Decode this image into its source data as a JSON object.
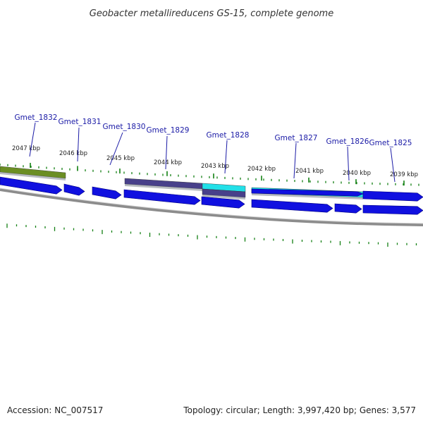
{
  "title": "Geobacter metallireducens GS-15, complete genome",
  "footer": {
    "accession": "Accession: NC_007517",
    "summary": "Topology: circular; Length: 3,997,420 bp; Genes: 3,577"
  },
  "kbp_labels": [
    "2047 kbp",
    "2046 kbp",
    "2045 kbp",
    "2044 kbp",
    "2043 kbp",
    "2042 kbp",
    "2041 kbp",
    "2040 kbp",
    "2039 kbp"
  ],
  "genes": [
    "Gmet_1832",
    "Gmet_1831",
    "Gmet_1830",
    "Gmet_1829",
    "Gmet_1828",
    "Gmet_1827",
    "Gmet_1826",
    "Gmet_1825"
  ],
  "colors": {
    "gene_blue": "#1010e0",
    "cog_olive": "#6b8e23",
    "cog_slate": "#48408a",
    "cog_cyan": "#22e0e8",
    "tick_green": "#138013",
    "backbone": "#8c8c8c"
  }
}
